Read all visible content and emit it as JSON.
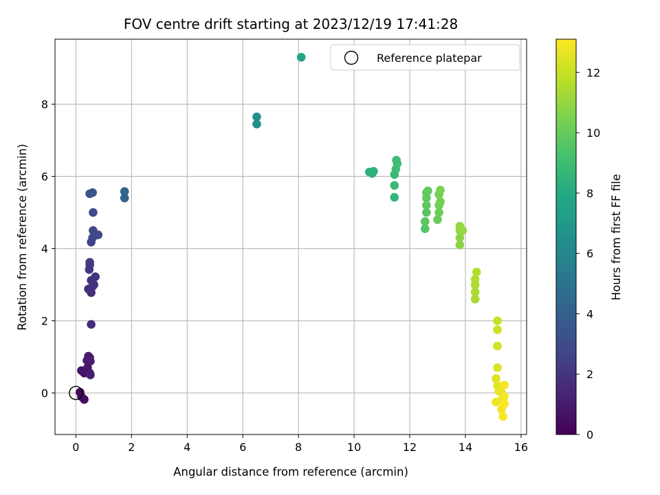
{
  "chart_data": {
    "type": "scatter",
    "title": "FOV centre drift starting at 2023/12/19 17:41:28",
    "xlabel": "Angular distance from reference (arcmin)",
    "ylabel": "Rotation from reference (arcmin)",
    "xlim": [
      -0.75,
      16.2
    ],
    "ylim": [
      -1.15,
      9.8
    ],
    "xticks": [
      0,
      2,
      4,
      6,
      8,
      10,
      12,
      14,
      16
    ],
    "yticks": [
      0,
      2,
      4,
      6,
      8
    ],
    "grid": true,
    "legend": {
      "position": "top-right",
      "entries": [
        "Reference platepar"
      ]
    },
    "colorbar": {
      "label": "Hours from first FF file",
      "range": [
        0,
        13.1
      ],
      "ticks": [
        0,
        2,
        4,
        6,
        8,
        10,
        12
      ],
      "colormap": "viridis"
    },
    "reference_point": {
      "name": "Reference platepar",
      "x": 0,
      "y": 0
    },
    "points": [
      {
        "x": 0.15,
        "y": 0.02,
        "c": 0.2
      },
      {
        "x": 0.2,
        "y": -0.1,
        "c": 0.3
      },
      {
        "x": 0.3,
        "y": -0.18,
        "c": 0.4
      },
      {
        "x": 0.2,
        "y": 0.62,
        "c": 0.6
      },
      {
        "x": 0.3,
        "y": 0.55,
        "c": 0.7
      },
      {
        "x": 0.42,
        "y": 0.7,
        "c": 0.8
      },
      {
        "x": 0.5,
        "y": 0.55,
        "c": 0.9
      },
      {
        "x": 0.4,
        "y": 0.9,
        "c": 0.9
      },
      {
        "x": 0.45,
        "y": 1.02,
        "c": 1.0
      },
      {
        "x": 0.5,
        "y": 0.98,
        "c": 1.0
      },
      {
        "x": 0.52,
        "y": 0.88,
        "c": 1.1
      },
      {
        "x": 0.52,
        "y": 0.5,
        "c": 1.1
      },
      {
        "x": 0.55,
        "y": 1.9,
        "c": 1.6
      },
      {
        "x": 0.45,
        "y": 2.88,
        "c": 1.8
      },
      {
        "x": 0.55,
        "y": 2.78,
        "c": 1.8
      },
      {
        "x": 0.6,
        "y": 2.95,
        "c": 1.9
      },
      {
        "x": 0.65,
        "y": 3.0,
        "c": 1.9
      },
      {
        "x": 0.7,
        "y": 3.22,
        "c": 2.0
      },
      {
        "x": 0.55,
        "y": 3.12,
        "c": 2.0
      },
      {
        "x": 0.48,
        "y": 3.42,
        "c": 2.1
      },
      {
        "x": 0.5,
        "y": 3.55,
        "c": 2.1
      },
      {
        "x": 0.5,
        "y": 3.62,
        "c": 2.2
      },
      {
        "x": 0.55,
        "y": 4.18,
        "c": 2.6
      },
      {
        "x": 0.6,
        "y": 4.3,
        "c": 2.7
      },
      {
        "x": 0.8,
        "y": 4.38,
        "c": 2.8
      },
      {
        "x": 0.62,
        "y": 4.5,
        "c": 2.8
      },
      {
        "x": 0.62,
        "y": 5.0,
        "c": 3.0
      },
      {
        "x": 0.5,
        "y": 5.52,
        "c": 3.3
      },
      {
        "x": 0.6,
        "y": 5.55,
        "c": 3.4
      },
      {
        "x": 1.75,
        "y": 5.4,
        "c": 4.2
      },
      {
        "x": 1.75,
        "y": 5.58,
        "c": 4.3
      },
      {
        "x": 6.5,
        "y": 7.45,
        "c": 6.4
      },
      {
        "x": 6.5,
        "y": 7.65,
        "c": 6.5
      },
      {
        "x": 8.1,
        "y": 9.3,
        "c": 7.5
      },
      {
        "x": 10.55,
        "y": 6.12,
        "c": 8.3
      },
      {
        "x": 10.65,
        "y": 6.08,
        "c": 8.4
      },
      {
        "x": 10.7,
        "y": 6.14,
        "c": 8.4
      },
      {
        "x": 11.45,
        "y": 5.42,
        "c": 8.6
      },
      {
        "x": 11.45,
        "y": 5.75,
        "c": 8.7
      },
      {
        "x": 11.45,
        "y": 6.05,
        "c": 8.8
      },
      {
        "x": 11.5,
        "y": 6.2,
        "c": 8.9
      },
      {
        "x": 11.55,
        "y": 6.35,
        "c": 9.0
      },
      {
        "x": 11.52,
        "y": 6.45,
        "c": 9.0
      },
      {
        "x": 12.55,
        "y": 4.55,
        "c": 9.6
      },
      {
        "x": 12.55,
        "y": 4.75,
        "c": 9.7
      },
      {
        "x": 12.6,
        "y": 5.0,
        "c": 9.7
      },
      {
        "x": 12.6,
        "y": 5.2,
        "c": 9.8
      },
      {
        "x": 12.6,
        "y": 5.4,
        "c": 9.8
      },
      {
        "x": 12.6,
        "y": 5.55,
        "c": 9.9
      },
      {
        "x": 12.65,
        "y": 5.6,
        "c": 9.9
      },
      {
        "x": 13.0,
        "y": 4.8,
        "c": 10.1
      },
      {
        "x": 13.05,
        "y": 5.0,
        "c": 10.2
      },
      {
        "x": 13.05,
        "y": 5.2,
        "c": 10.2
      },
      {
        "x": 13.1,
        "y": 5.3,
        "c": 10.3
      },
      {
        "x": 13.05,
        "y": 5.5,
        "c": 10.3
      },
      {
        "x": 13.1,
        "y": 5.62,
        "c": 10.4
      },
      {
        "x": 13.8,
        "y": 4.1,
        "c": 10.8
      },
      {
        "x": 13.8,
        "y": 4.3,
        "c": 10.9
      },
      {
        "x": 13.8,
        "y": 4.5,
        "c": 10.9
      },
      {
        "x": 13.8,
        "y": 4.62,
        "c": 11.0
      },
      {
        "x": 13.9,
        "y": 4.5,
        "c": 11.0
      },
      {
        "x": 14.35,
        "y": 2.6,
        "c": 11.4
      },
      {
        "x": 14.35,
        "y": 2.8,
        "c": 11.4
      },
      {
        "x": 14.35,
        "y": 3.0,
        "c": 11.5
      },
      {
        "x": 14.35,
        "y": 3.15,
        "c": 11.5
      },
      {
        "x": 14.4,
        "y": 3.35,
        "c": 11.6
      },
      {
        "x": 15.15,
        "y": 2.0,
        "c": 12.0
      },
      {
        "x": 15.15,
        "y": 1.75,
        "c": 12.1
      },
      {
        "x": 15.15,
        "y": 1.3,
        "c": 12.2
      },
      {
        "x": 15.15,
        "y": 0.7,
        "c": 12.4
      },
      {
        "x": 15.1,
        "y": 0.4,
        "c": 12.5
      },
      {
        "x": 15.15,
        "y": 0.2,
        "c": 12.6
      },
      {
        "x": 15.2,
        "y": 0.05,
        "c": 12.7
      },
      {
        "x": 15.3,
        "y": 0.0,
        "c": 12.7
      },
      {
        "x": 15.3,
        "y": -0.2,
        "c": 12.8
      },
      {
        "x": 15.1,
        "y": -0.25,
        "c": 12.8
      },
      {
        "x": 15.4,
        "y": -0.1,
        "c": 12.9
      },
      {
        "x": 15.3,
        "y": -0.45,
        "c": 12.9
      },
      {
        "x": 15.35,
        "y": -0.65,
        "c": 13.0
      },
      {
        "x": 15.4,
        "y": 0.22,
        "c": 13.0
      },
      {
        "x": 15.4,
        "y": -0.3,
        "c": 13.1
      }
    ]
  }
}
